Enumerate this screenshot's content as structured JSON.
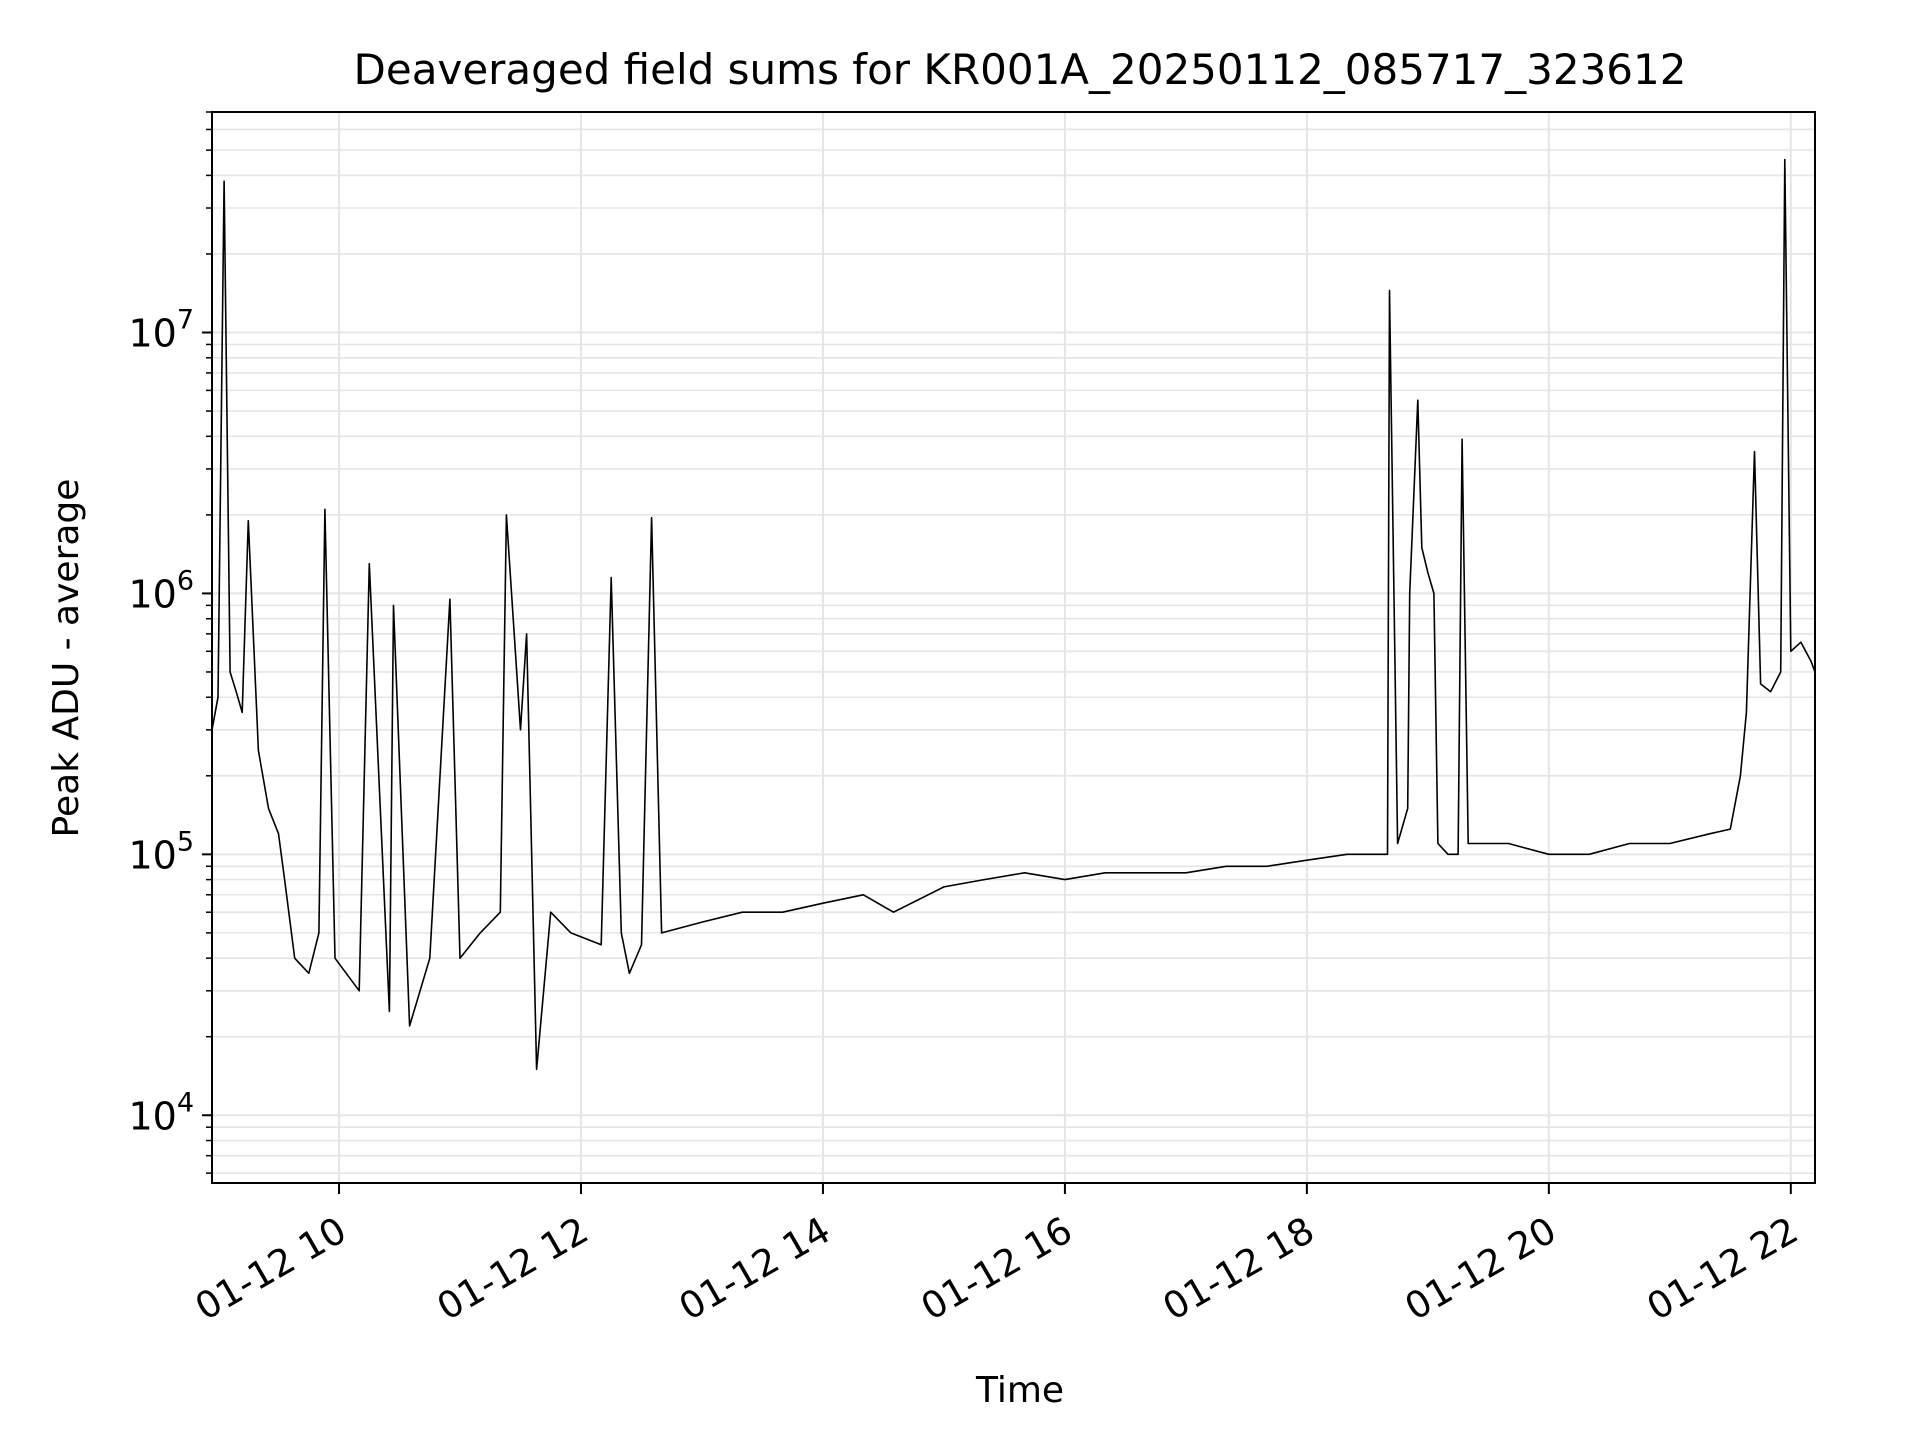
{
  "chart_data": {
    "type": "line",
    "title": "Deaveraged field sums for KR001A_20250112_085717_323612",
    "xlabel": "Time",
    "ylabel": "Peak ADU - average",
    "yscale": "log",
    "ylim": [
      5500,
      70000000
    ],
    "xlim": [
      "2025-01-12 08:57",
      "2025-01-12 22:12"
    ],
    "grid": true,
    "line_color": "#000000",
    "grid_color": "#e5e5e5",
    "x_ticks": [
      "01-12 10",
      "01-12 12",
      "01-12 14",
      "01-12 16",
      "01-12 18",
      "01-12 20",
      "01-12 22"
    ],
    "y_ticks": [
      {
        "base": "10",
        "exp": "4"
      },
      {
        "base": "10",
        "exp": "5"
      },
      {
        "base": "10",
        "exp": "6"
      },
      {
        "base": "10",
        "exp": "7"
      }
    ],
    "series": [
      {
        "x": [
          "2025-01-12 08:57",
          "2025-01-12 09:00",
          "2025-01-12 09:03",
          "2025-01-12 09:06",
          "2025-01-12 09:09",
          "2025-01-12 09:12",
          "2025-01-12 09:15",
          "2025-01-12 09:20",
          "2025-01-12 09:25",
          "2025-01-12 09:30",
          "2025-01-12 09:33",
          "2025-01-12 09:38",
          "2025-01-12 09:45",
          "2025-01-12 09:50",
          "2025-01-12 09:53",
          "2025-01-12 09:58",
          "2025-01-12 10:10",
          "2025-01-12 10:15",
          "2025-01-12 10:25",
          "2025-01-12 10:27",
          "2025-01-12 10:35",
          "2025-01-12 10:45",
          "2025-01-12 10:55",
          "2025-01-12 11:00",
          "2025-01-12 11:10",
          "2025-01-12 11:20",
          "2025-01-12 11:23",
          "2025-01-12 11:30",
          "2025-01-12 11:33",
          "2025-01-12 11:38",
          "2025-01-12 11:45",
          "2025-01-12 11:55",
          "2025-01-12 12:10",
          "2025-01-12 12:15",
          "2025-01-12 12:20",
          "2025-01-12 12:24",
          "2025-01-12 12:30",
          "2025-01-12 12:35",
          "2025-01-12 12:40",
          "2025-01-12 13:00",
          "2025-01-12 13:20",
          "2025-01-12 13:40",
          "2025-01-12 14:00",
          "2025-01-12 14:20",
          "2025-01-12 14:35",
          "2025-01-12 15:00",
          "2025-01-12 15:20",
          "2025-01-12 15:40",
          "2025-01-12 16:00",
          "2025-01-12 16:20",
          "2025-01-12 16:40",
          "2025-01-12 17:00",
          "2025-01-12 17:20",
          "2025-01-12 17:40",
          "2025-01-12 18:00",
          "2025-01-12 18:20",
          "2025-01-12 18:40",
          "2025-01-12 18:41",
          "2025-01-12 18:45",
          "2025-01-12 18:50",
          "2025-01-12 18:51",
          "2025-01-12 18:55",
          "2025-01-12 18:57",
          "2025-01-12 19:00",
          "2025-01-12 19:03",
          "2025-01-12 19:05",
          "2025-01-12 19:10",
          "2025-01-12 19:15",
          "2025-01-12 19:17",
          "2025-01-12 19:20",
          "2025-01-12 19:40",
          "2025-01-12 20:00",
          "2025-01-12 20:20",
          "2025-01-12 20:40",
          "2025-01-12 21:00",
          "2025-01-12 21:20",
          "2025-01-12 21:30",
          "2025-01-12 21:35",
          "2025-01-12 21:38",
          "2025-01-12 21:42",
          "2025-01-12 21:45",
          "2025-01-12 21:50",
          "2025-01-12 21:55",
          "2025-01-12 21:57",
          "2025-01-12 22:00",
          "2025-01-12 22:05",
          "2025-01-12 22:10",
          "2025-01-12 22:12"
        ],
        "y": [
          300000,
          400000,
          38000000,
          500000,
          420000,
          350000,
          1900000,
          250000,
          150000,
          120000,
          80000,
          40000,
          35000,
          50000,
          2100000,
          40000,
          30000,
          1300000,
          25000,
          900000,
          22000,
          40000,
          950000,
          40000,
          50000,
          60000,
          2000000,
          300000,
          700000,
          15000,
          60000,
          50000,
          45000,
          1150000,
          50000,
          35000,
          45000,
          1950000,
          50000,
          55000,
          60000,
          60000,
          65000,
          70000,
          60000,
          75000,
          80000,
          85000,
          80000,
          85000,
          85000,
          85000,
          90000,
          90000,
          95000,
          100000,
          100000,
          14500000,
          110000,
          150000,
          1000000,
          5500000,
          1500000,
          1200000,
          1000000,
          110000,
          100000,
          100000,
          3900000,
          110000,
          110000,
          100000,
          100000,
          110000,
          110000,
          120000,
          125000,
          200000,
          350000,
          3500000,
          450000,
          420000,
          500000,
          46000000,
          600000,
          650000,
          550000,
          500000
        ]
      }
    ]
  }
}
